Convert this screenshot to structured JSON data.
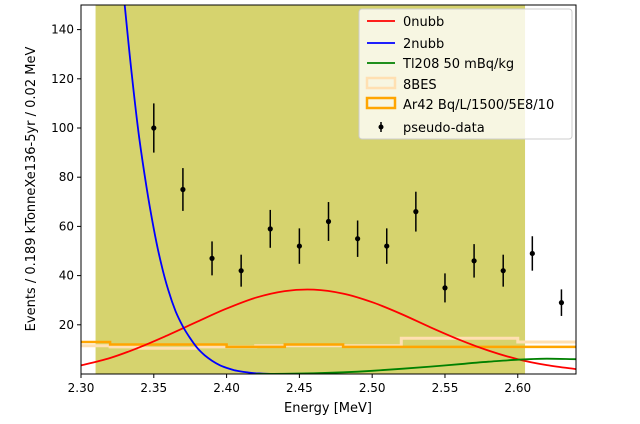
{
  "chart_data": {
    "type": "line",
    "title": "",
    "xlabel": "Energy [MeV]",
    "ylabel": "Events / 0.189 kTonneXe136-5yr / 0.02 MeV",
    "xlim": [
      2.3,
      2.64
    ],
    "ylim": [
      0,
      150
    ],
    "x_ticks": [
      2.3,
      2.35,
      2.4,
      2.45,
      2.5,
      2.55,
      2.6
    ],
    "x_tick_labels": [
      "2.30",
      "2.35",
      "2.40",
      "2.45",
      "2.50",
      "2.55",
      "2.60"
    ],
    "y_ticks": [
      20,
      40,
      60,
      80,
      100,
      120,
      140
    ],
    "y_tick_labels": [
      "20",
      "40",
      "60",
      "80",
      "100",
      "120",
      "140"
    ],
    "roi": {
      "x_start": 2.31,
      "x_end": 2.605,
      "color": "#d6d36e"
    },
    "legend_position": "top-right",
    "legend": [
      {
        "label": "0nubb",
        "kind": "line",
        "color": "#ff0000"
      },
      {
        "label": "2nubb",
        "kind": "line",
        "color": "#0000ff"
      },
      {
        "label": "Tl208 50 mBq/kg",
        "kind": "line",
        "color": "#008000"
      },
      {
        "label": "8BES",
        "kind": "step",
        "color": "#ffe0b2"
      },
      {
        "label": "Ar42 Bq/L/1500/5E8/10",
        "kind": "step",
        "color": "#ffa500"
      },
      {
        "label": "pseudo-data",
        "kind": "errorbar",
        "color": "#000000"
      }
    ],
    "curves": [
      {
        "name": "0nubb",
        "color": "#ff0000",
        "x": [
          2.3,
          2.32,
          2.34,
          2.36,
          2.38,
          2.4,
          2.42,
          2.44,
          2.46,
          2.48,
          2.5,
          2.52,
          2.54,
          2.56,
          2.58,
          2.6,
          2.62,
          2.64
        ],
        "y": [
          3.5,
          6.5,
          10.8,
          15.9,
          21.3,
          26.6,
          31.0,
          33.7,
          34.3,
          32.7,
          29.2,
          24.4,
          19.0,
          13.9,
          9.5,
          6.0,
          3.6,
          2.0
        ]
      },
      {
        "name": "2nubb",
        "color": "#0000ff",
        "x": [
          2.33,
          2.335,
          2.34,
          2.345,
          2.35,
          2.355,
          2.36,
          2.365,
          2.37,
          2.375,
          2.38,
          2.385,
          2.39,
          2.395,
          2.4,
          2.405,
          2.41,
          2.415,
          2.42,
          2.425,
          2.43,
          2.435
        ],
        "y": [
          150,
          121,
          96,
          76,
          59,
          45,
          34,
          25.5,
          19.3,
          14.5,
          10.5,
          7.6,
          5.4,
          3.7,
          2.5,
          1.6,
          1.0,
          0.6,
          0.3,
          0.15,
          0.05,
          0.0
        ]
      },
      {
        "name": "Tl208 50 mBq/kg",
        "color": "#008000",
        "x": [
          2.42,
          2.44,
          2.46,
          2.48,
          2.5,
          2.52,
          2.54,
          2.56,
          2.58,
          2.6,
          2.62,
          2.64
        ],
        "y": [
          0.0,
          0.1,
          0.3,
          0.7,
          1.3,
          2.1,
          3.0,
          4.0,
          5.0,
          5.8,
          6.2,
          6.0
        ]
      }
    ],
    "steps": [
      {
        "name": "8BES",
        "color": "#ffe0b2",
        "edges": [
          2.3,
          2.32,
          2.34,
          2.36,
          2.38,
          2.4,
          2.42,
          2.44,
          2.46,
          2.48,
          2.5,
          2.52,
          2.54,
          2.56,
          2.58,
          2.6,
          2.62,
          2.64
        ],
        "values": [
          11.5,
          11.0,
          10.5,
          10.5,
          11.0,
          11.0,
          11.5,
          11.5,
          11.5,
          11.5,
          11.5,
          14.5,
          14.5,
          14.5,
          14.5,
          13.0,
          13.0
        ]
      },
      {
        "name": "Ar42 Bq/L/1500/5E8/10",
        "color": "#ffa500",
        "edges": [
          2.3,
          2.32,
          2.34,
          2.36,
          2.38,
          2.4,
          2.42,
          2.44,
          2.46,
          2.48,
          2.5,
          2.52,
          2.54,
          2.56,
          2.58,
          2.6,
          2.62,
          2.64
        ],
        "values": [
          13.0,
          12.0,
          12.0,
          12.0,
          12.0,
          11.0,
          11.0,
          12.0,
          12.0,
          11.0,
          11.0,
          11.0,
          11.0,
          11.0,
          11.0,
          11.0,
          11.0
        ]
      }
    ],
    "pseudo_data": {
      "name": "pseudo-data",
      "x": [
        2.35,
        2.37,
        2.39,
        2.41,
        2.43,
        2.45,
        2.47,
        2.49,
        2.51,
        2.53,
        2.55,
        2.57,
        2.59,
        2.61,
        2.63
      ],
      "y": [
        100,
        75,
        47,
        42,
        59,
        52,
        62,
        55,
        52,
        66,
        35,
        46,
        42,
        49,
        29
      ],
      "err": [
        10,
        8.7,
        6.9,
        6.5,
        7.7,
        7.2,
        7.9,
        7.4,
        7.2,
        8.1,
        5.9,
        6.8,
        6.5,
        7.0,
        5.4
      ]
    }
  }
}
